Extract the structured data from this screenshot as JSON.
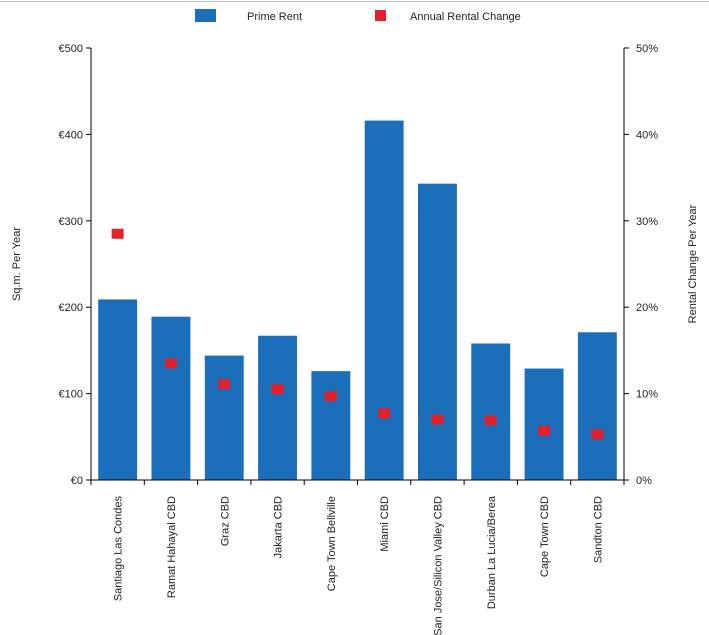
{
  "chart_data": {
    "type": "bar",
    "categories": [
      "Santiago Las Condes",
      "Ramat Hahayal CBD",
      "Graz CBD",
      "Jakarta CBD",
      "Cape Town Bellville",
      "Miami CBD",
      "San Jose/Silicon Valley CBD",
      "Durban La Lucia/Berea",
      "Cape Town CBD",
      "Sandton CBD"
    ],
    "series": [
      {
        "name": "Prime Rent",
        "type": "bar",
        "axis": "left",
        "color": "#1b6fba",
        "values": [
          209,
          189,
          144,
          167,
          126,
          416,
          343,
          158,
          129,
          171
        ]
      },
      {
        "name": "Annual Rental Change",
        "type": "scatter",
        "axis": "right",
        "color": "#e3202a",
        "values": [
          28.5,
          13.5,
          11.1,
          10.5,
          9.7,
          7.7,
          7.0,
          6.9,
          5.7,
          5.3
        ]
      }
    ],
    "ylabel": "Sq.m. Per Year",
    "y2label": "Rental Change Per Year",
    "ylim": [
      0,
      500
    ],
    "y2lim": [
      0,
      50
    ],
    "yticks": [
      "€0",
      "€100",
      "€200",
      "€300",
      "€400",
      "€500"
    ],
    "y2ticks": [
      "0%",
      "10%",
      "20%",
      "30%",
      "40%",
      "50%"
    ],
    "legend_position": "top-center",
    "grid": false
  }
}
